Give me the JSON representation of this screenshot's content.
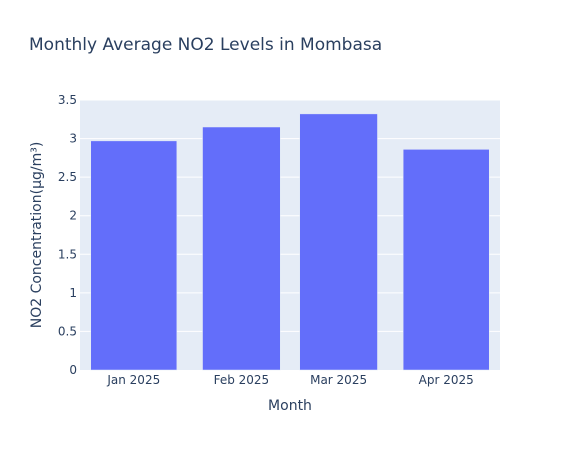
{
  "chart_data": {
    "type": "bar",
    "title": "Monthly Average NO2 Levels in Mombasa",
    "xlabel": "Month",
    "ylabel": "NO2 Concentration(μg/m³)",
    "x": [
      "2025-01-01",
      "2025-02-01",
      "2025-03-01",
      "2025-04-01"
    ],
    "categories": [
      "Jan 2025",
      "Feb 2025",
      "Mar 2025",
      "Apr 2025"
    ],
    "values": [
      2.97,
      3.15,
      3.32,
      2.86
    ],
    "ylim": [
      0,
      3.5
    ],
    "yticks": [
      "0",
      "0.5",
      "1",
      "1.5",
      "2",
      "2.5",
      "3",
      "3.5"
    ],
    "grid": true,
    "colors": {
      "bar": "#636efa",
      "plot_bg": "#e5ecf6",
      "grid": "#ffffff",
      "text": "#2a3f5f"
    }
  }
}
